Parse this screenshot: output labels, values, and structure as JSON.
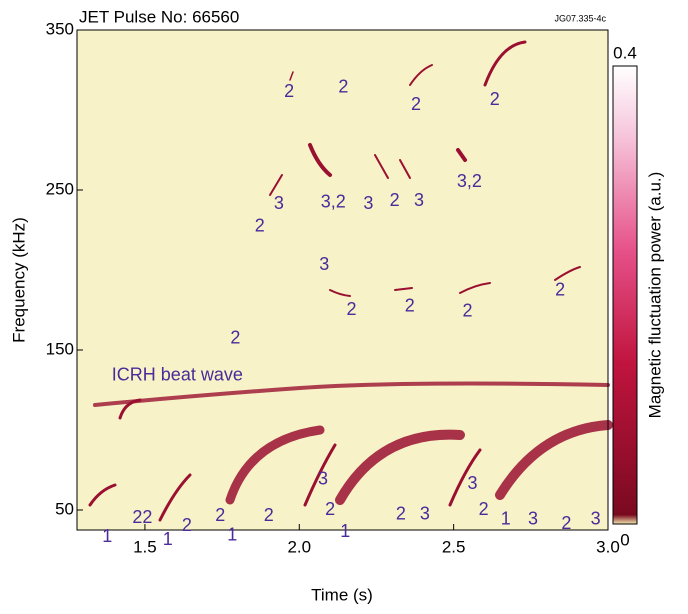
{
  "chart_data": {
    "type": "spectrogram",
    "title": "JET Pulse No: 66560",
    "figure_id": "JG07.335-4c",
    "x_label": "Time (s)",
    "y_label": "Frequency (kHz)",
    "xlim": [
      1.28,
      3.0
    ],
    "ylim": [
      37.5,
      350
    ],
    "xticks": [
      1.5,
      {
        "value": 2.0,
        "label": "2.0"
      },
      2.5,
      {
        "value": 3.0,
        "label": "3.0"
      }
    ],
    "yticks": [
      50,
      150,
      250,
      350
    ],
    "background": "#f8f2c8",
    "colorbar": {
      "label": "Magnetic fluctuation power (a.u.)",
      "lim": [
        0,
        0.4
      ],
      "ticks": [
        0,
        0.4
      ]
    },
    "annotations": [
      {
        "text": "2",
        "x": 1.967,
        "y": 311
      },
      {
        "text": "2",
        "x": 2.143,
        "y": 314
      },
      {
        "text": "2",
        "x": 2.378,
        "y": 303
      },
      {
        "text": "2",
        "x": 2.633,
        "y": 306
      },
      {
        "text": "3",
        "x": 1.934,
        "y": 241
      },
      {
        "text": "2",
        "x": 1.872,
        "y": 227
      },
      {
        "text": "3,2",
        "x": 2.11,
        "y": 242
      },
      {
        "text": "3",
        "x": 2.224,
        "y": 241
      },
      {
        "text": "2",
        "x": 2.309,
        "y": 243
      },
      {
        "text": "3",
        "x": 2.388,
        "y": 243
      },
      {
        "text": "3,2",
        "x": 2.551,
        "y": 255
      },
      {
        "text": "3",
        "x": 2.081,
        "y": 203
      },
      {
        "text": "2",
        "x": 2.169,
        "y": 175
      },
      {
        "text": "2",
        "x": 2.358,
        "y": 177
      },
      {
        "text": "2",
        "x": 2.545,
        "y": 174
      },
      {
        "text": "2",
        "x": 2.845,
        "y": 187
      },
      {
        "text": "2",
        "x": 1.793,
        "y": 157
      },
      {
        "text": "ICRH beat wave",
        "x": 1.605,
        "y": 134
      },
      {
        "text": "1",
        "x": 1.378,
        "y": 33
      },
      {
        "text": "22",
        "x": 1.492,
        "y": 45
      },
      {
        "text": "1",
        "x": 1.574,
        "y": 31
      },
      {
        "text": "2",
        "x": 1.636,
        "y": 40
      },
      {
        "text": "2",
        "x": 1.744,
        "y": 46
      },
      {
        "text": "1",
        "x": 1.783,
        "y": 34
      },
      {
        "text": "2",
        "x": 1.901,
        "y": 46
      },
      {
        "text": "3",
        "x": 2.077,
        "y": 69
      },
      {
        "text": "2",
        "x": 2.1,
        "y": 50
      },
      {
        "text": "1",
        "x": 2.149,
        "y": 36
      },
      {
        "text": "2",
        "x": 2.329,
        "y": 47
      },
      {
        "text": "3",
        "x": 2.407,
        "y": 47
      },
      {
        "text": "3",
        "x": 2.561,
        "y": 66
      },
      {
        "text": "2",
        "x": 2.597,
        "y": 50
      },
      {
        "text": "1",
        "x": 2.669,
        "y": 44
      },
      {
        "text": "3",
        "x": 2.757,
        "y": 44
      },
      {
        "text": "2",
        "x": 2.865,
        "y": 41
      },
      {
        "text": "3",
        "x": 2.96,
        "y": 44
      }
    ]
  }
}
